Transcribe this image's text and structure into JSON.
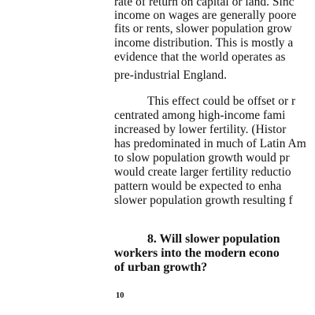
{
  "paragraph_1": {
    "lines": [
      "rate of return on capital or land. Sinc",
      "income on wages are generally poore",
      "fits or rents, slower population grow",
      "income distribution. This is mostly a",
      "evidence that the world operates as",
      "pre-industrial England."
    ]
  },
  "paragraph_2": {
    "lines": [
      "This effect could be offset or r",
      "centrated among high-income fami",
      "increased by lower fertility. (Histor",
      "has predominated in much of Latin Am",
      "to slow population growth would pr",
      "would create larger fertility reductio",
      "pattern would be expected to enha",
      "slower population growth resulting f"
    ]
  },
  "section_heading": {
    "lines": [
      "8.  Will  slower  population",
      "workers  into  the  modern  econo",
      "of urban growth?"
    ]
  },
  "page_number": "10"
}
